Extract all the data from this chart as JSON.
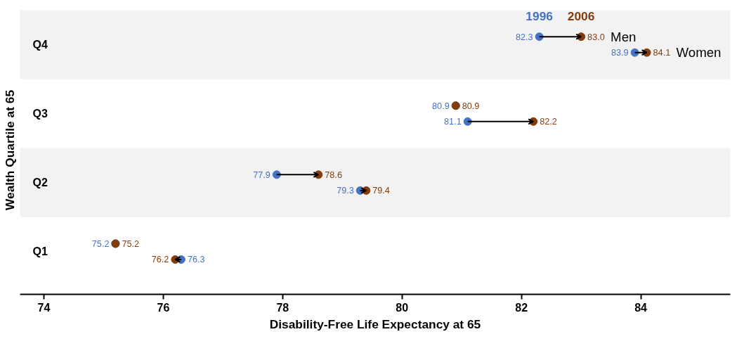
{
  "chart_data": {
    "type": "scatter",
    "orientation": "horizontal",
    "xlabel": "Disability-Free Life Expectancy at 65",
    "ylabel": "Wealth Quartile at 65",
    "categories": [
      "Q4",
      "Q3",
      "Q2",
      "Q1"
    ],
    "series": [
      {
        "name": "1996",
        "color": "#4472c4",
        "values": [
          82.3,
          80.9,
          77.9,
          75.2
        ],
        "value_labels": [
          "82.3",
          "80.9",
          "77.9",
          "75.2"
        ]
      },
      {
        "name": "2006",
        "color": "#843c0c",
        "values": [
          83.0,
          80.9,
          78.6,
          75.2
        ],
        "value_labels": [
          "83.0",
          "80.9",
          "78.6",
          "75.2"
        ]
      },
      {
        "color": "#4472c4",
        "values": [
          83.9,
          81.1,
          79.3,
          76.3
        ],
        "value_labels": [
          "83.9",
          "81.1",
          "79.3",
          "76.3"
        ]
      },
      {
        "color": "#843c0c",
        "values": [
          84.1,
          82.2,
          79.4,
          76.2
        ],
        "value_labels": [
          "84.1",
          "82.2",
          "79.4",
          "76.2"
        ]
      }
    ],
    "annotations": [
      "Men",
      "Women"
    ],
    "xlim": [
      73.6,
      85.5
    ],
    "xticks": [
      74,
      76,
      78,
      80,
      82,
      84
    ],
    "grid": false,
    "marker": "circle"
  }
}
